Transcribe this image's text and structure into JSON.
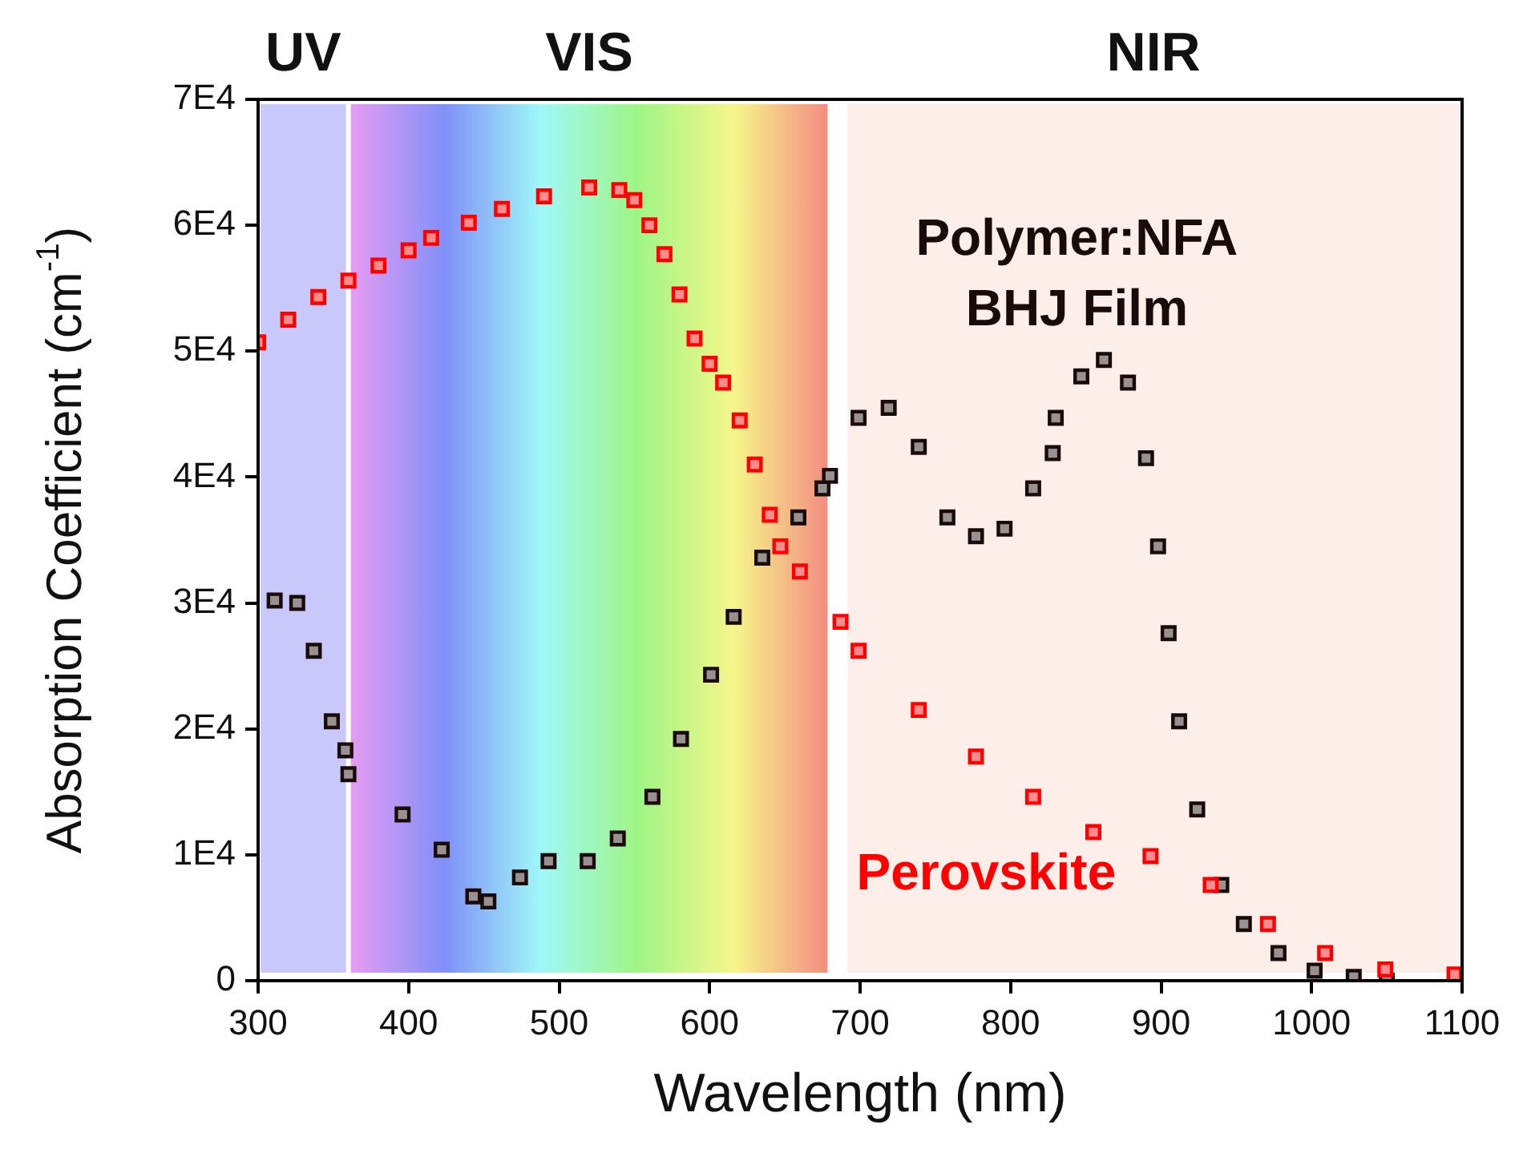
{
  "chart_data": {
    "type": "scatter",
    "xlabel": "Wavelength (nm)",
    "ylabel": "Absorption Coefficient (cm$^{-1}$)",
    "xlim": [
      300,
      1100
    ],
    "xticks": [
      300,
      400,
      500,
      600,
      700,
      800,
      900,
      1000,
      1100
    ],
    "ylim": [
      0,
      70000
    ],
    "yticks": [
      0,
      {
        "value": 10000,
        "label": "1E4"
      },
      {
        "value": 20000,
        "label": "2E4"
      },
      {
        "value": 30000,
        "label": "3E4"
      },
      {
        "value": 40000,
        "label": "4E4"
      },
      {
        "value": 50000,
        "label": "5E4"
      },
      {
        "value": 60000,
        "label": "6E4"
      },
      {
        "value": 70000,
        "label": "7E4"
      }
    ],
    "marker": "square",
    "grid": false,
    "legend": false,
    "bands": [
      {
        "axis": "x",
        "from": 300,
        "to": 360,
        "label": "UV",
        "color": "#c8c8fa"
      },
      {
        "axis": "x",
        "from": 360,
        "to": 680,
        "label": "VIS"
      },
      {
        "axis": "x",
        "from": 690,
        "to": 1100,
        "label": "NIR",
        "color": "#fdeee9"
      }
    ],
    "series": [
      {
        "name": "Perovskite",
        "color": "#ff0000",
        "x": [
          300,
          320,
          340,
          360,
          380,
          400,
          415,
          440,
          462,
          490,
          520,
          540,
          550,
          560,
          570,
          580,
          590,
          600,
          609,
          620,
          630,
          640,
          647,
          660,
          687,
          699,
          739,
          777,
          815,
          855,
          893,
          933,
          971,
          1009,
          1049,
          1095
        ],
        "values": [
          50700,
          52500,
          54300,
          55600,
          56800,
          58000,
          59000,
          60200,
          61300,
          62300,
          63000,
          62800,
          62000,
          60000,
          57700,
          54500,
          51000,
          49000,
          47500,
          44500,
          41000,
          37000,
          34500,
          32500,
          28500,
          26200,
          21500,
          17800,
          14600,
          11800,
          9900,
          7600,
          4500,
          2200,
          900,
          500
        ]
      },
      {
        "name": "Polymer:NFA BHJ Film",
        "color": "#1a0a0a",
        "x": [
          311,
          326,
          337,
          349,
          358,
          360,
          396,
          422,
          443,
          453,
          474,
          493,
          519,
          539,
          562,
          581,
          601,
          616,
          635,
          659,
          675,
          680,
          699,
          719,
          739,
          758,
          777,
          796,
          815,
          828,
          830,
          847,
          862,
          878,
          890,
          898,
          905,
          912,
          924,
          940,
          955,
          978,
          1002,
          1028,
          1050
        ],
        "values": [
          30200,
          30000,
          26200,
          20600,
          18300,
          16400,
          13200,
          10400,
          6700,
          6300,
          8200,
          9500,
          9500,
          11300,
          14600,
          19200,
          24300,
          28900,
          33600,
          36800,
          39100,
          40100,
          44700,
          45500,
          42400,
          36800,
          35300,
          35900,
          39100,
          41900,
          44700,
          48000,
          49300,
          47500,
          41500,
          34500,
          27600,
          20600,
          13600,
          7600,
          4500,
          2200,
          800,
          300,
          0
        ]
      }
    ]
  }
}
